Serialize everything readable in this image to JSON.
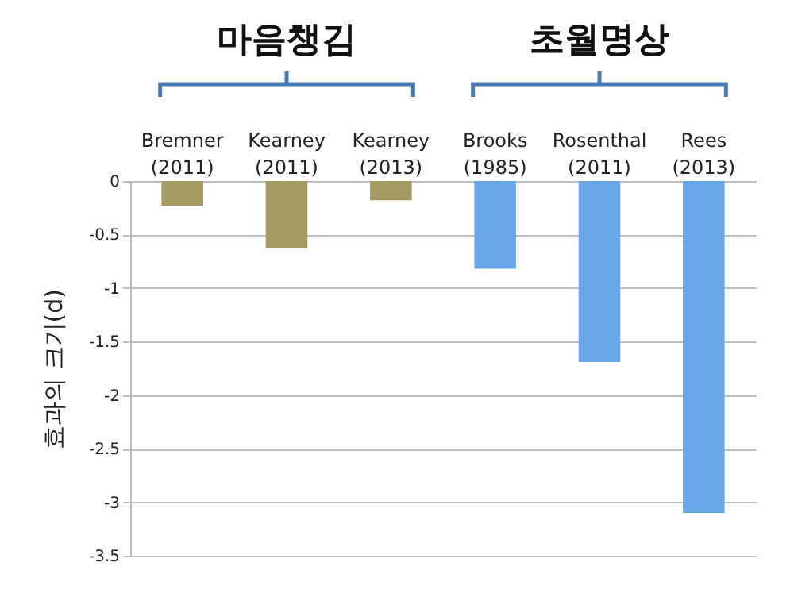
{
  "chart_data": {
    "type": "bar",
    "ylabel": "효과의 크기(d)",
    "categories": [
      "Bremner\n(2011)",
      "Kearney\n(2011)",
      "Kearney\n(2013)",
      "Brooks\n(1985)",
      "Rosenthal\n(2011)",
      "Rees\n(2013)"
    ],
    "values": [
      -0.23,
      -0.63,
      -0.18,
      -0.82,
      -1.69,
      -3.1
    ],
    "colors": [
      "#a59a62",
      "#a59a62",
      "#a59a62",
      "#6aa7e8",
      "#6aa7e8",
      "#6aa7e8"
    ],
    "annotations": [
      "마음챙김",
      "초월명상"
    ],
    "ylim": [
      -3.5,
      0
    ],
    "yticks": [
      0,
      -0.5,
      -1,
      -1.5,
      -2,
      -2.5,
      -3,
      -3.5
    ],
    "grid": "y"
  }
}
